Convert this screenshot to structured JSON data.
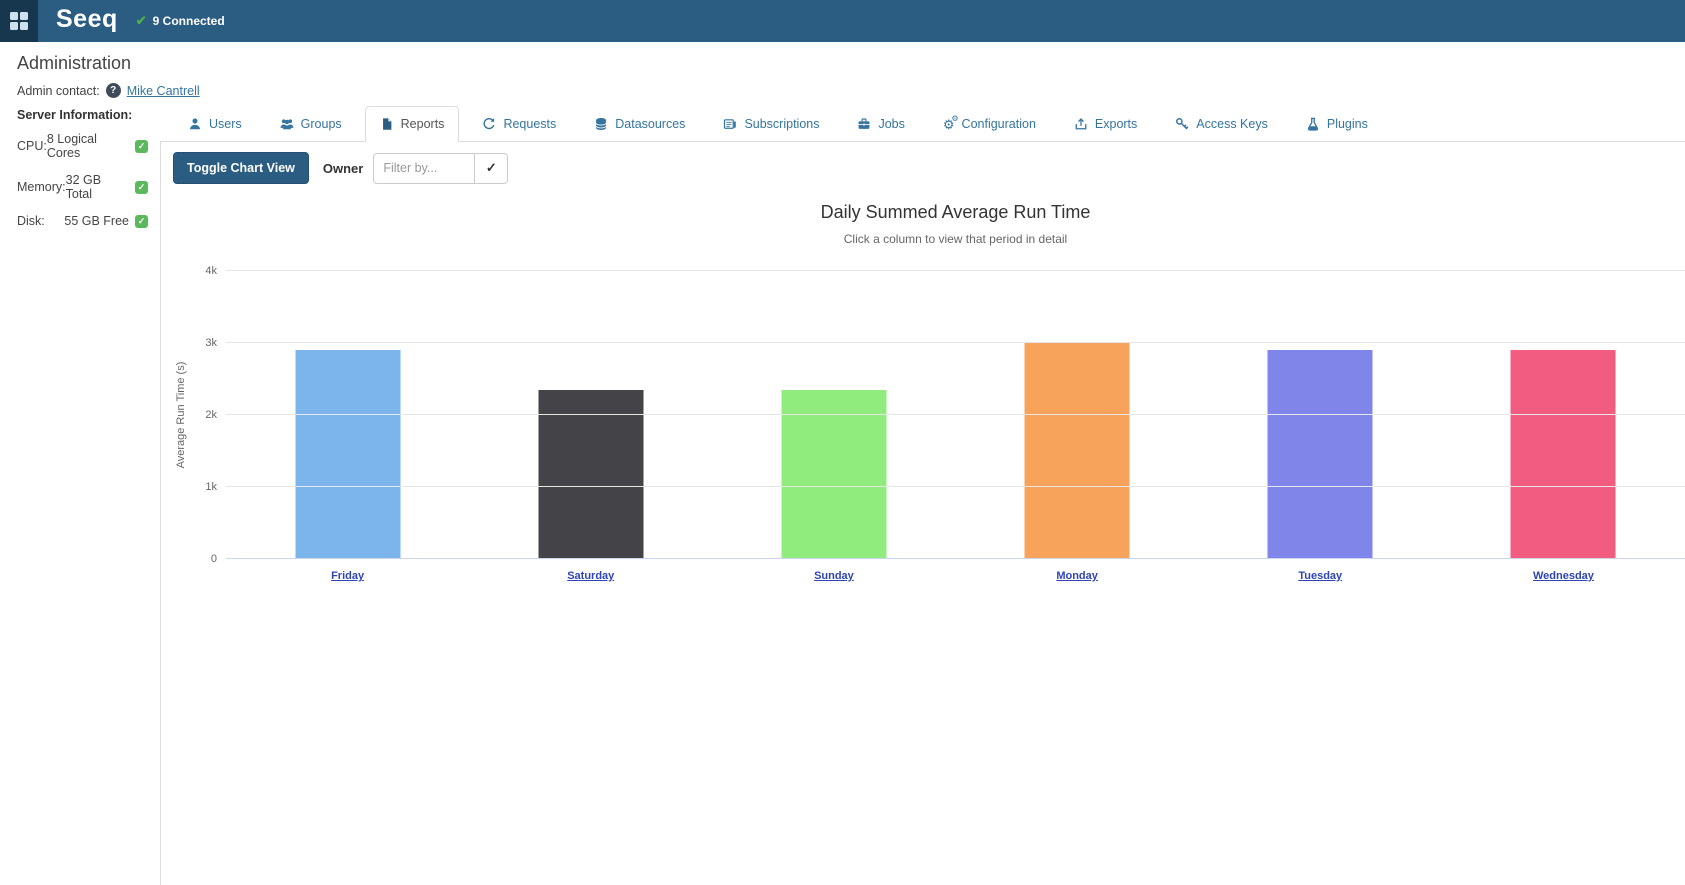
{
  "navbar": {
    "brand": "Seeq",
    "apps_icon": "grid-icon",
    "connection": {
      "icon": "check-icon",
      "label": "9 Connected",
      "color": "#4cae4c"
    }
  },
  "page": {
    "title": "Administration",
    "admin_contact": {
      "label": "Admin contact:",
      "help_icon": "question-icon",
      "name": "Mike Cantrell"
    }
  },
  "server_info": {
    "heading": "Server Information:",
    "rows": [
      {
        "label": "CPU:",
        "value": "8 Logical Cores",
        "status_icon": "check-square-icon",
        "status_color": "#5cb85c"
      },
      {
        "label": "Memory:",
        "value": "32 GB Total",
        "status_icon": "check-square-icon",
        "status_color": "#5cb85c"
      },
      {
        "label": "Disk:",
        "value": "55 GB Free",
        "status_icon": "check-square-icon",
        "status_color": "#5cb85c"
      }
    ]
  },
  "tabs": [
    {
      "label": "Users",
      "icon": "user-icon",
      "active": false
    },
    {
      "label": "Groups",
      "icon": "users-icon",
      "active": false
    },
    {
      "label": "Reports",
      "icon": "file-icon",
      "active": true
    },
    {
      "label": "Requests",
      "icon": "history-icon",
      "active": false
    },
    {
      "label": "Datasources",
      "icon": "database-icon",
      "active": false
    },
    {
      "label": "Subscriptions",
      "icon": "newspaper-icon",
      "active": false
    },
    {
      "label": "Jobs",
      "icon": "briefcase-icon",
      "active": false
    },
    {
      "label": "Configuration",
      "icon": "gears-icon",
      "active": false
    },
    {
      "label": "Exports",
      "icon": "export-icon",
      "active": false
    },
    {
      "label": "Access Keys",
      "icon": "key-icon",
      "active": false
    },
    {
      "label": "Plugins",
      "icon": "flask-icon",
      "active": false
    }
  ],
  "toolbar": {
    "toggle_chart_view_label": "Toggle Chart View",
    "owner_label": "Owner",
    "filter_placeholder": "Filter by...",
    "apply_filter_icon": "check-icon"
  },
  "chart_data": {
    "type": "bar",
    "title": "Daily Summed Average Run Time",
    "subtitle": "Click a column to view that period in detail",
    "ylabel": "Average Run Time (s)",
    "xlabel": "",
    "categories": [
      "Friday",
      "Saturday",
      "Sunday",
      "Monday",
      "Tuesday",
      "Wednesday"
    ],
    "values": [
      2900,
      2350,
      2350,
      3000,
      2900,
      2900
    ],
    "bar_colors": [
      "#7cb5ec",
      "#434348",
      "#90ed7d",
      "#f7a35c",
      "#8085e9",
      "#f15c80"
    ],
    "ylim": [
      0,
      4000
    ],
    "yticks": [
      {
        "value": 0,
        "label": "0"
      },
      {
        "value": 1000,
        "label": "1k"
      },
      {
        "value": 2000,
        "label": "2k"
      },
      {
        "value": 3000,
        "label": "3k"
      },
      {
        "value": 4000,
        "label": "4k"
      }
    ],
    "grid": true,
    "legend": "none",
    "categories_are_links": true
  }
}
